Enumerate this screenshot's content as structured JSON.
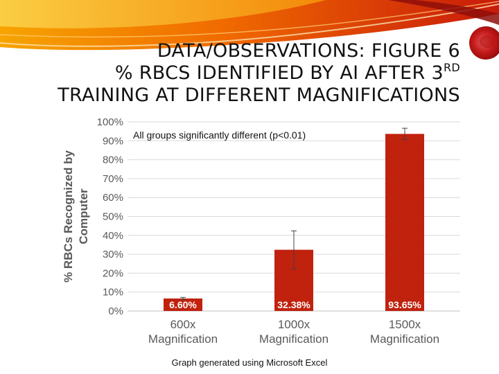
{
  "slide": {
    "title_line1": "DATA/OBSERVATIONS: FIGURE 6",
    "title_line2": "% RBCS IDENTIFIED BY AI AFTER 3",
    "title_line2_sup": "RD",
    "title_line3": "TRAINING AT DIFFERENT MAGNIFICATIONS",
    "footer": "Graph generated using Microsoft Excel"
  },
  "chart_data": {
    "type": "bar",
    "categories": [
      [
        "600x",
        "Magnification"
      ],
      [
        "1000x",
        "Magnification"
      ],
      [
        "1500x",
        "Magnification"
      ]
    ],
    "values": [
      6.6,
      32.38,
      93.65
    ],
    "data_labels": [
      "6.60%",
      "32.38%",
      "93.65%"
    ],
    "error": [
      0.6,
      10,
      3
    ],
    "ylabel": [
      "% RBCs Recognized by",
      "Computer"
    ],
    "ylim": [
      0,
      100
    ],
    "yticks": [
      0,
      10,
      20,
      30,
      40,
      50,
      60,
      70,
      80,
      90,
      100
    ],
    "ytick_labels": [
      "0%",
      "10%",
      "20%",
      "30%",
      "40%",
      "50%",
      "60%",
      "70%",
      "80%",
      "90%",
      "100%"
    ],
    "annotation": "All groups significantly different (p<0.01)",
    "grid": true,
    "bar_color": "#c0220e",
    "label_color": "#ffffff"
  }
}
